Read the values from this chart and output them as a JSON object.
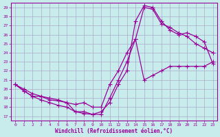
{
  "xlabel": "Windchill (Refroidissement éolien,°C)",
  "bg_color": "#c8ecec",
  "line_color": "#990099",
  "grid_color": "#aaaacc",
  "xlim": [
    -0.5,
    23.5
  ],
  "ylim": [
    16.5,
    29.5
  ],
  "xticks": [
    0,
    1,
    2,
    3,
    4,
    5,
    6,
    7,
    8,
    9,
    10,
    11,
    12,
    13,
    14,
    15,
    16,
    17,
    18,
    19,
    20,
    21,
    22,
    23
  ],
  "yticks": [
    17,
    18,
    19,
    20,
    21,
    22,
    23,
    24,
    25,
    26,
    27,
    28,
    29
  ],
  "line1_x": [
    0,
    1,
    2,
    3,
    4,
    5,
    6,
    7,
    8,
    9,
    10,
    11,
    12,
    13,
    14,
    15,
    16,
    17,
    18,
    19,
    20,
    21,
    22,
    23
  ],
  "line1_y": [
    20.5,
    20.0,
    19.5,
    19.2,
    18.8,
    18.7,
    18.5,
    18.3,
    18.5,
    18.0,
    18.0,
    20.5,
    22.0,
    24.0,
    25.5,
    21.0,
    21.5,
    22.0,
    22.5,
    22.5,
    22.5,
    22.5,
    22.5,
    23.0
  ],
  "line2_x": [
    0,
    1,
    2,
    3,
    4,
    5,
    6,
    7,
    8,
    9,
    10,
    11,
    12,
    13,
    14,
    15,
    16,
    17,
    18,
    19,
    20,
    21,
    22,
    23
  ],
  "line2_y": [
    20.5,
    19.8,
    19.2,
    19.2,
    19.0,
    18.8,
    18.5,
    17.5,
    17.5,
    17.2,
    17.2,
    19.0,
    21.0,
    23.0,
    25.5,
    29.0,
    28.8,
    27.2,
    26.8,
    26.2,
    25.8,
    25.0,
    24.5,
    24.0
  ],
  "line3_x": [
    0,
    1,
    2,
    3,
    4,
    5,
    6,
    7,
    8,
    9,
    10,
    11,
    12,
    13,
    14,
    15,
    16,
    17,
    18,
    19,
    20,
    21,
    22,
    23
  ],
  "line3_y": [
    20.5,
    19.8,
    19.2,
    18.8,
    18.5,
    18.2,
    18.0,
    17.5,
    17.3,
    17.2,
    17.5,
    18.5,
    20.5,
    22.0,
    27.5,
    29.2,
    29.0,
    27.5,
    26.5,
    26.0,
    26.2,
    25.8,
    25.2,
    22.8
  ]
}
